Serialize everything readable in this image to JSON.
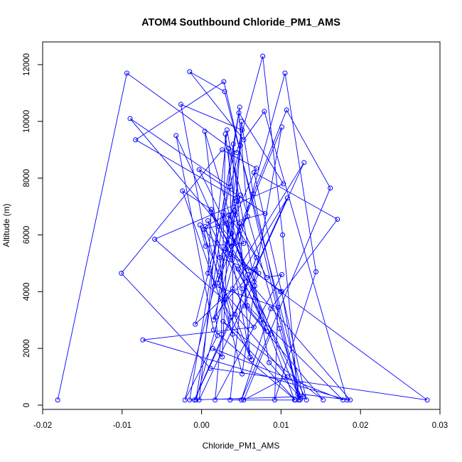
{
  "chart_data": {
    "type": "scatter",
    "title": "ATOM4 Southbound Chloride_PM1_AMS",
    "xlabel": "Chloride_PM1_AMS",
    "ylabel": "Altitude (m)",
    "xlim": [
      -0.02,
      0.03
    ],
    "ylim": [
      -150,
      12800
    ],
    "xticks": [
      -0.02,
      -0.01,
      0.0,
      0.01,
      0.02,
      0.03
    ],
    "xtick_labels": [
      "-0.02",
      "-0.01",
      "0.00",
      "0.01",
      "0.02",
      "0.03"
    ],
    "yticks": [
      0,
      2000,
      4000,
      6000,
      8000,
      10000,
      12000
    ],
    "ytick_labels": [
      "0",
      "2000",
      "4000",
      "6000",
      "8000",
      "10000",
      "12000"
    ],
    "grid": false,
    "legend": "none",
    "color": "#0000ff",
    "series": [
      {
        "x": [
          -0.0181,
          -0.0094,
          0.0044,
          0.0077,
          0.0102,
          0.0122,
          0.0028,
          -0.0083,
          0.0043,
          0.0051,
          -0.0026,
          0.0016,
          0.0096,
          0.0092,
          0.0144,
          0.0105,
          -0.0007,
          0.0048,
          -0.0015,
          0.0128,
          0.0029,
          -0.0015,
          0.0053,
          0.0079,
          0.0183,
          -0.0074,
          0.0066,
          0.0008,
          0.0012,
          0.0058,
          0.0054,
          0.0153,
          0.0027,
          0.0118,
          0.0015,
          -0.0032,
          0.0036,
          0.0101,
          0.0124,
          0.0031,
          0.0049,
          0.002,
          0.0107,
          0.0162,
          0.005,
          0.0087,
          0.0171,
          0.0066,
          0.0132,
          0.0012,
          -0.0024,
          0.0039,
          0.004,
          0.0061,
          0.0028,
          0.0117,
          0.0036,
          0.0051,
          0.0008,
          0.0037,
          -0.0009,
          0.0108,
          0.0015,
          0.0048,
          0.0082,
          0.0101,
          0.0017,
          0.0025,
          0.003,
          0.0058,
          0.0178,
          0.0014,
          0.0026,
          0.0034,
          0.0069,
          0.0042,
          0.0108,
          0.0053,
          0.0087,
          0.0031,
          0.0099,
          0.0284,
          0.0011,
          -0.0101,
          0.0026,
          0.0069,
          0.0043,
          0.0053,
          0.0005,
          -0.0002,
          0.0063,
          0.0028,
          0.0068,
          0.0129,
          0.0046,
          0.0082,
          0.0039,
          -0.0008,
          0.0049,
          0.0018,
          0.002,
          -0.0021,
          0.0041,
          0.0005,
          0.0051,
          0.0067,
          0.0085,
          0.0125,
          0.0098,
          0.0034,
          0.0038,
          0.0023,
          0.0072,
          -0.0003,
          0.0032,
          0.0075,
          0.0004,
          0.0029,
          -0.0059,
          0.0103,
          0.0047,
          0.0058,
          0.0037,
          0.0044,
          0.005,
          0.0065,
          0.0121,
          0.0187,
          0.0003,
          0.008,
          -0.0003,
          0.0066,
          0.0101,
          0.0042,
          -0.009,
          0.0036
        ],
        "y": [
          180,
          11700,
          8900,
          12300,
          6000,
          180,
          11400,
          9350,
          7300,
          9700,
          10600,
          4200,
          3450,
          180,
          4700,
          11700,
          180,
          10500,
          180,
          300,
          11050,
          11750,
          9350,
          10350,
          180,
          2300,
          2750,
          4650,
          6800,
          4600,
          3500,
          180,
          2950,
          180,
          2650,
          9500,
          5300,
          4000,
          180,
          6400,
          7400,
          4300,
          10400,
          7650,
          180,
          3400,
          6550,
          8200,
          180,
          6900,
          7550,
          2500,
          9200,
          1700,
          6800,
          180,
          180,
          4100,
          6500,
          3100,
          180,
          7300,
          3000,
          6400,
          4500,
          4600,
          180,
          2500,
          9550,
          3500,
          180,
          2000,
          1700,
          6700,
          5200,
          3200,
          1000,
          180,
          2500,
          5500,
          4000,
          180,
          1300,
          4650,
          9000,
          8350,
          6700,
          5700,
          5600,
          6350,
          1600,
          3600,
          4800,
          8550,
          4800,
          2600,
          4100,
          2850,
          9150,
          3100,
          2450,
          180,
          6850,
          6300,
          1100,
          4200,
          1500,
          250,
          2700,
          9050,
          6050,
          5200,
          4650,
          180,
          9700,
          3000,
          9650,
          3700,
          5850,
          7800,
          10300,
          6650,
          5600,
          7200,
          10000,
          7450,
          400,
          180,
          6200,
          6750,
          8300,
          4350,
          9800,
          5700,
          10100,
          7700
        ]
      }
    ]
  }
}
